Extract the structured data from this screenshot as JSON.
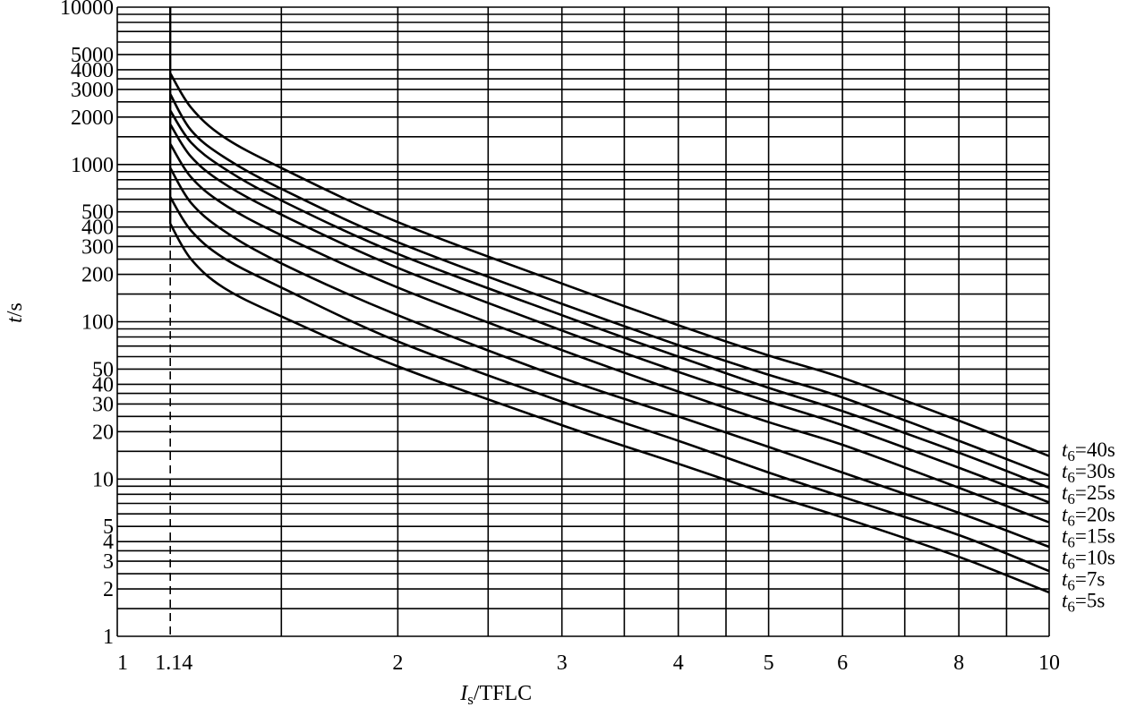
{
  "chart_data": {
    "type": "line",
    "title": "",
    "xlabel": {
      "symbol": "I",
      "subscript": "s",
      "rest": "/TFLC"
    },
    "ylabel": {
      "symbol": "t",
      "rest": "/s"
    },
    "x_scale": "log",
    "y_scale": "log",
    "xlim": [
      1,
      10
    ],
    "ylim": [
      1,
      10000
    ],
    "x_tick_labels": [
      {
        "value": 1,
        "label": "1"
      },
      {
        "value": 1.14,
        "label": "1.14"
      },
      {
        "value": 2,
        "label": "2"
      },
      {
        "value": 3,
        "label": "3"
      },
      {
        "value": 4,
        "label": "4"
      },
      {
        "value": 5,
        "label": "5"
      },
      {
        "value": 6,
        "label": "6"
      },
      {
        "value": 8,
        "label": "8"
      },
      {
        "value": 10,
        "label": "10"
      }
    ],
    "x_grid": [
      1.14,
      1.5,
      2,
      2.5,
      3,
      3.5,
      4,
      4.5,
      5,
      6,
      7,
      8,
      9,
      10
    ],
    "y_tick_labels": [
      {
        "value": 1,
        "label": "1"
      },
      {
        "value": 2,
        "label": "2"
      },
      {
        "value": 3,
        "label": "3"
      },
      {
        "value": 4,
        "label": "4"
      },
      {
        "value": 5,
        "label": "5"
      },
      {
        "value": 10,
        "label": "10"
      },
      {
        "value": 20,
        "label": "20"
      },
      {
        "value": 30,
        "label": "30"
      },
      {
        "value": 40,
        "label": "40"
      },
      {
        "value": 50,
        "label": "50"
      },
      {
        "value": 100,
        "label": "100"
      },
      {
        "value": 200,
        "label": "200"
      },
      {
        "value": 300,
        "label": "300"
      },
      {
        "value": 400,
        "label": "400"
      },
      {
        "value": 500,
        "label": "500"
      },
      {
        "value": 1000,
        "label": "1000"
      },
      {
        "value": 2000,
        "label": "2000"
      },
      {
        "value": 3000,
        "label": "3000"
      },
      {
        "value": 4000,
        "label": "4000"
      },
      {
        "value": 5000,
        "label": "5000"
      },
      {
        "value": 10000,
        "label": "10000"
      }
    ],
    "y_grid": [
      1.5,
      2,
      2.5,
      3,
      3.5,
      4,
      5,
      6,
      7,
      8,
      9,
      10,
      15,
      20,
      25,
      30,
      35,
      40,
      50,
      60,
      70,
      80,
      90,
      100,
      150,
      200,
      250,
      300,
      350,
      400,
      500,
      600,
      700,
      800,
      900,
      1000,
      1500,
      2000,
      2500,
      3000,
      3500,
      4000,
      5000,
      6000,
      7000,
      8000,
      9000,
      10000
    ],
    "reference_line": {
      "x": 1.14,
      "style": "dashed"
    },
    "series": [
      {
        "name": "5s",
        "label_prefix": "t",
        "label_sub": "6",
        "label_rest": "=5s",
        "x": [
          1.14,
          1.2,
          1.3,
          1.5,
          2,
          3,
          4,
          5,
          6,
          8,
          10
        ],
        "y": [
          420,
          250,
          165,
          108,
          52,
          22,
          12.5,
          8,
          5.7,
          3.2,
          1.9
        ]
      },
      {
        "name": "7s",
        "label_prefix": "t",
        "label_sub": "6",
        "label_rest": "=7s",
        "x": [
          1.14,
          1.2,
          1.3,
          1.5,
          2,
          3,
          4,
          5,
          6,
          8,
          10
        ],
        "y": [
          620,
          380,
          255,
          165,
          75,
          31,
          17.5,
          11,
          7.7,
          4.4,
          2.6
        ]
      },
      {
        "name": "10s",
        "label_prefix": "t",
        "label_sub": "6",
        "label_rest": "=10s",
        "x": [
          1.14,
          1.2,
          1.3,
          1.5,
          2,
          3,
          4,
          5,
          6,
          8,
          10
        ],
        "y": [
          950,
          570,
          380,
          235,
          110,
          44,
          25,
          16,
          11,
          6.1,
          3.7
        ]
      },
      {
        "name": "15s",
        "label_prefix": "t",
        "label_sub": "6",
        "label_rest": "=15s",
        "x": [
          1.14,
          1.2,
          1.3,
          1.5,
          2,
          3,
          4,
          5,
          6,
          8,
          10
        ],
        "y": [
          1350,
          830,
          560,
          355,
          165,
          66,
          36,
          23,
          16.5,
          8.8,
          5.3
        ]
      },
      {
        "name": "20s",
        "label_prefix": "t",
        "label_sub": "6",
        "label_rest": "=20s",
        "x": [
          1.14,
          1.2,
          1.3,
          1.5,
          2,
          3,
          4,
          5,
          6,
          8,
          10
        ],
        "y": [
          1800,
          1120,
          760,
          480,
          220,
          88,
          48,
          31,
          22,
          11.8,
          7.1
        ]
      },
      {
        "name": "25s",
        "label_prefix": "t",
        "label_sub": "6",
        "label_rest": "=25s",
        "x": [
          1.14,
          1.2,
          1.3,
          1.5,
          2,
          3,
          4,
          5,
          6,
          8,
          10
        ],
        "y": [
          2200,
          1380,
          950,
          590,
          270,
          110,
          60,
          38,
          27,
          14.7,
          8.8
        ]
      },
      {
        "name": "30s",
        "label_prefix": "t",
        "label_sub": "6",
        "label_rest": "=30s",
        "x": [
          1.14,
          1.2,
          1.3,
          1.5,
          2,
          3,
          4,
          5,
          6,
          8,
          10
        ],
        "y": [
          2800,
          1650,
          1120,
          700,
          320,
          130,
          71,
          46,
          33,
          17.5,
          10.5
        ]
      },
      {
        "name": "40s",
        "label_prefix": "t",
        "label_sub": "6",
        "label_rest": "=40s",
        "x": [
          1.14,
          1.2,
          1.3,
          1.5,
          2,
          3,
          4,
          5,
          6,
          8,
          10
        ],
        "y": [
          3800,
          2300,
          1500,
          950,
          430,
          175,
          95,
          61,
          44,
          23.5,
          14
        ]
      }
    ],
    "grid": true
  }
}
